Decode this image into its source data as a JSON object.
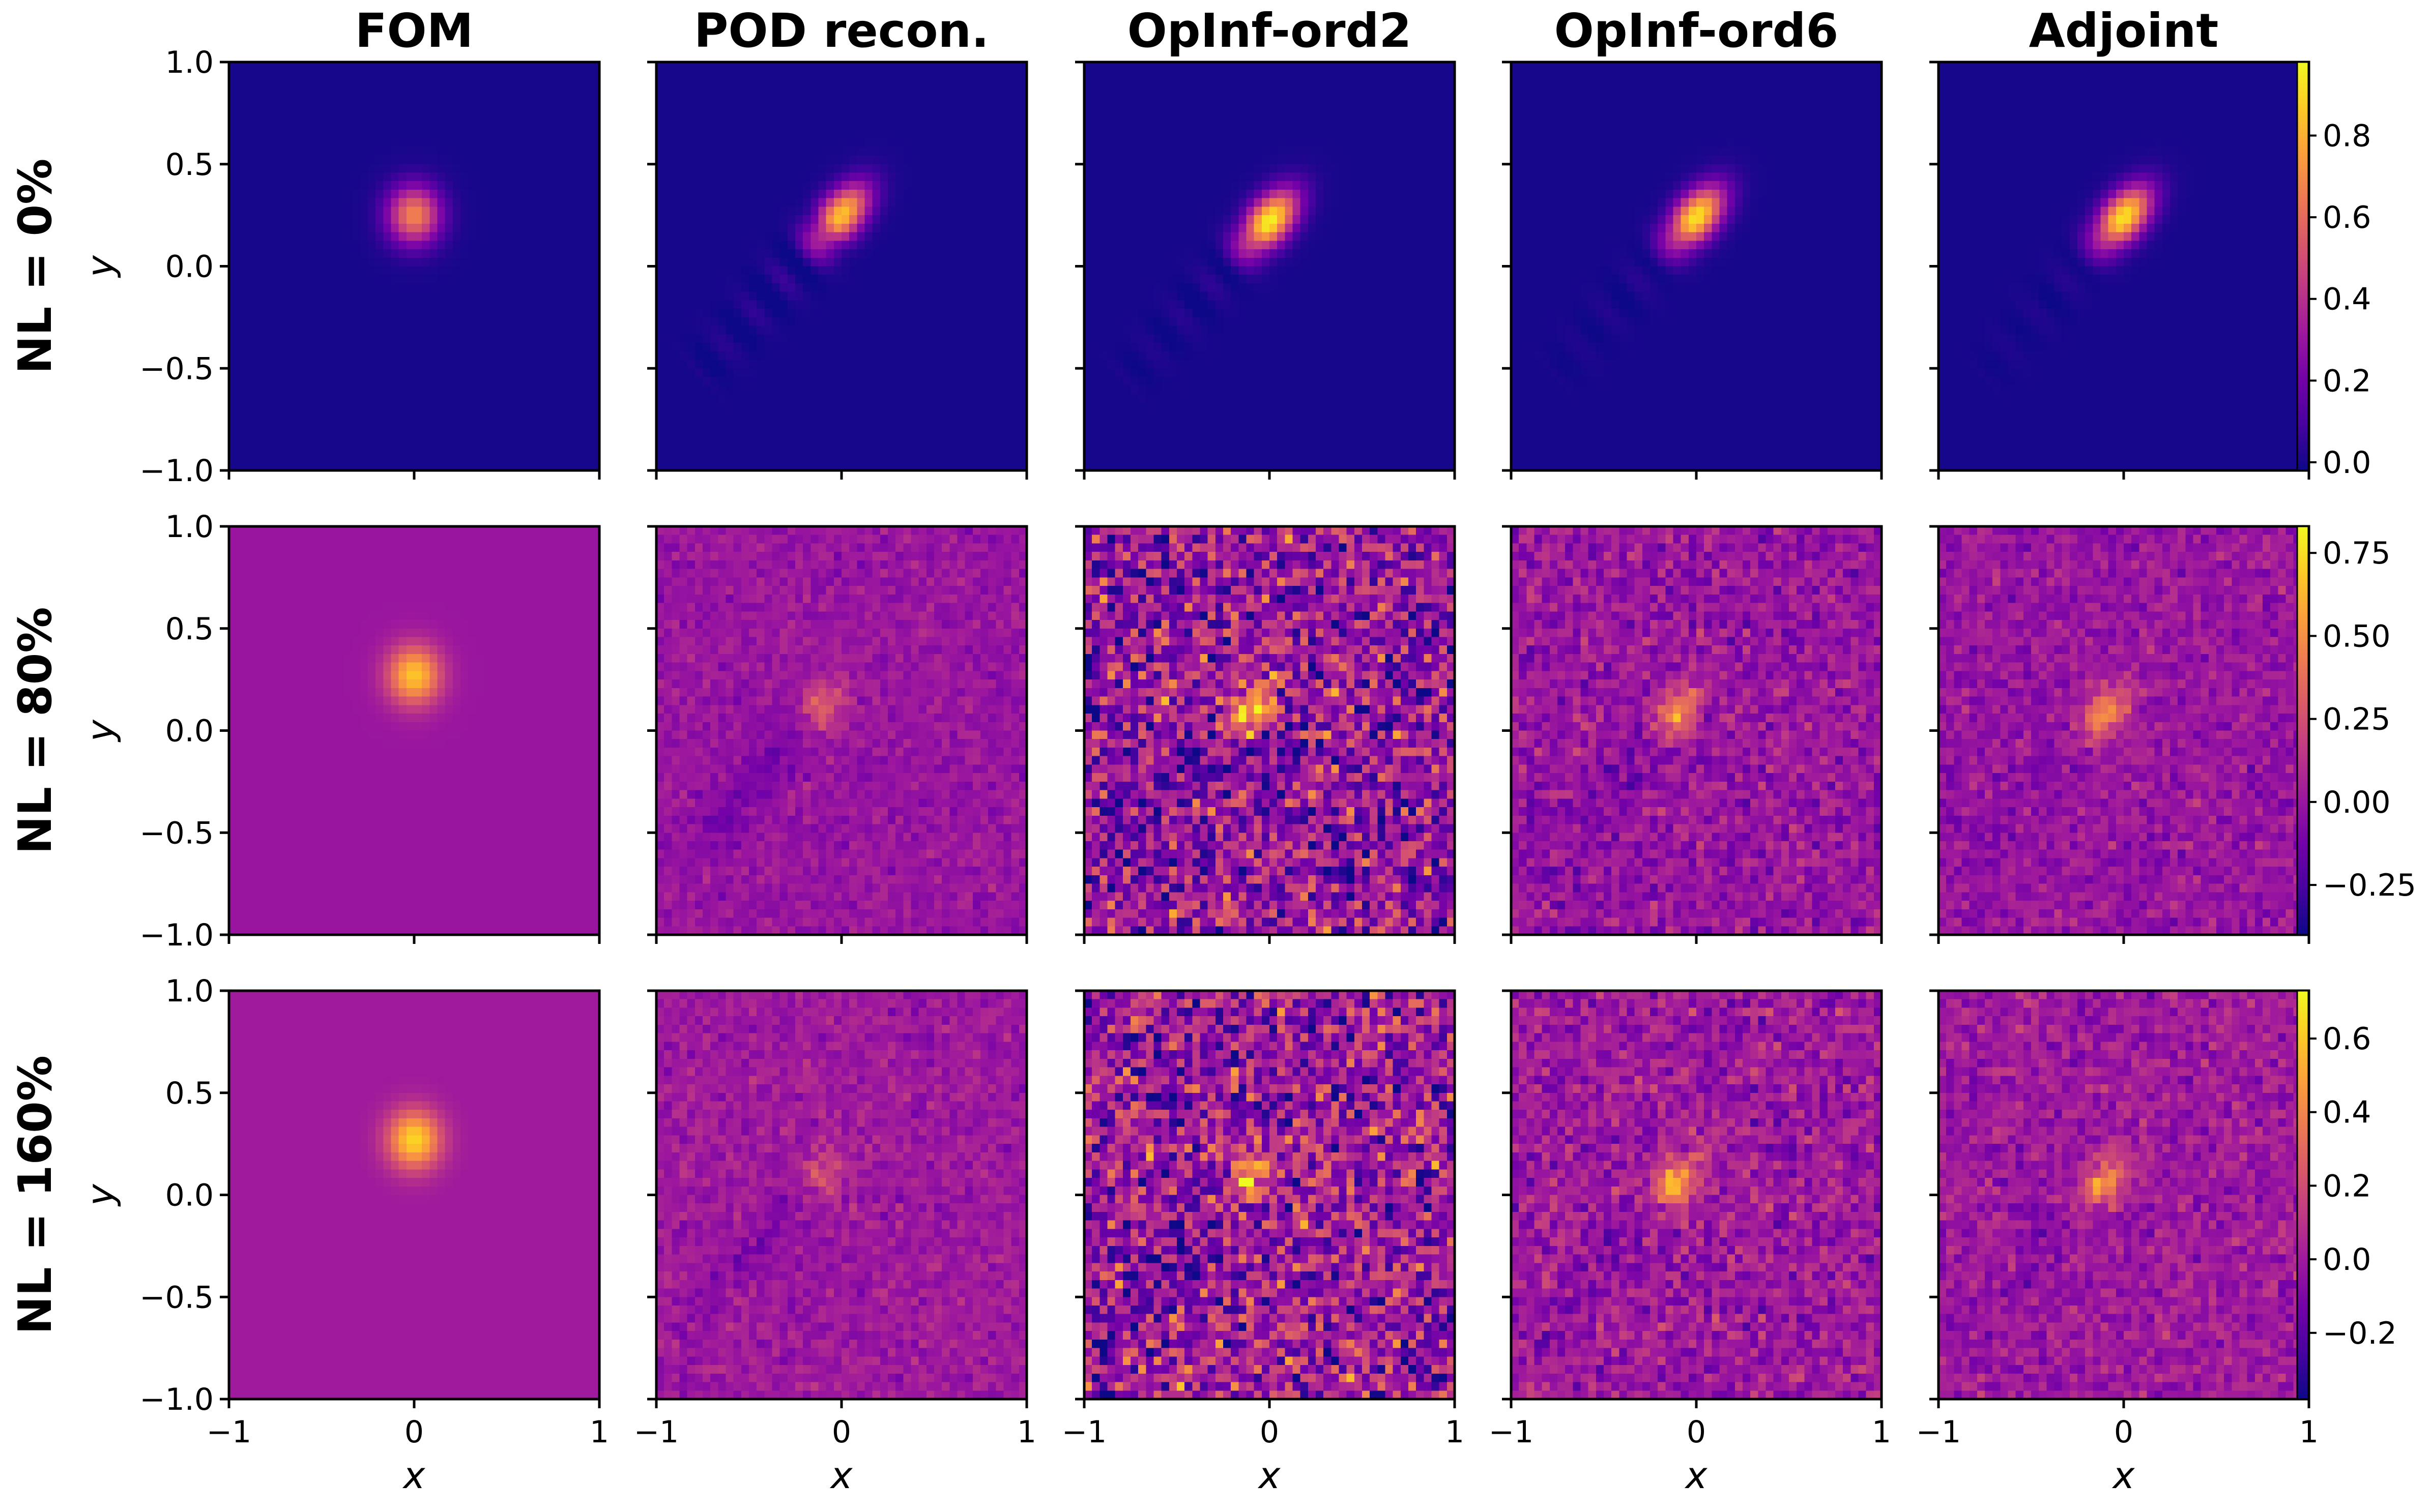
{
  "chart_data": {
    "type": "heatmap",
    "colormap": "plasma",
    "colormap_stops": [
      "#0d0887",
      "#46039f",
      "#7201a8",
      "#9c179e",
      "#bd3786",
      "#d8576b",
      "#ed7953",
      "#fb9f3a",
      "#fdca26",
      "#f0f921"
    ],
    "column_titles": [
      "FOM",
      "POD recon.",
      "OpInf-ord2",
      "OpInf-ord6",
      "Adjoint"
    ],
    "rows": [
      {
        "title": "NL = 0%",
        "clim": [
          -0.02,
          0.98
        ],
        "colorbar_ticks": [
          "0.0",
          "0.2",
          "0.4",
          "0.6",
          "0.8"
        ],
        "colorbar_tick_values": [
          0.0,
          0.2,
          0.4,
          0.6,
          0.8
        ],
        "panels": [
          {
            "peak": 0.68,
            "center": [
              0.0,
              0.25
            ],
            "background": 0.0,
            "noise": 0.0,
            "ripple": 0.0,
            "elongated": false
          },
          {
            "peak": 0.85,
            "center": [
              0.0,
              0.25
            ],
            "background": 0.0,
            "noise": 0.0,
            "ripple": 0.12,
            "elongated": true
          },
          {
            "peak": 0.97,
            "center": [
              0.0,
              0.22
            ],
            "background": 0.0,
            "noise": 0.0,
            "ripple": 0.08,
            "elongated": true
          },
          {
            "peak": 0.93,
            "center": [
              0.0,
              0.24
            ],
            "background": 0.0,
            "noise": 0.0,
            "ripple": 0.06,
            "elongated": true
          },
          {
            "peak": 0.93,
            "center": [
              0.0,
              0.24
            ],
            "background": 0.0,
            "noise": 0.0,
            "ripple": 0.05,
            "elongated": true
          }
        ]
      },
      {
        "title": "NL = 80%",
        "clim": [
          -0.4,
          0.83
        ],
        "colorbar_ticks": [
          "−0.25",
          "0.00",
          "0.25",
          "0.50",
          "0.75"
        ],
        "colorbar_tick_values": [
          -0.25,
          0.0,
          0.25,
          0.5,
          0.75
        ],
        "panels": [
          {
            "peak": 0.68,
            "center": [
              0.0,
              0.27
            ],
            "background": 0.0,
            "noise": 0.0,
            "ripple": 0.0,
            "elongated": false
          },
          {
            "peak": 0.32,
            "center": [
              -0.12,
              0.1
            ],
            "background": 0.0,
            "noise": 0.05,
            "ripple": -0.2,
            "elongated": true
          },
          {
            "peak": 0.62,
            "center": [
              -0.12,
              0.08
            ],
            "background": 0.0,
            "noise": 0.22,
            "ripple": -0.25,
            "elongated": true
          },
          {
            "peak": 0.52,
            "center": [
              -0.12,
              0.08
            ],
            "background": 0.0,
            "noise": 0.09,
            "ripple": -0.15,
            "elongated": true
          },
          {
            "peak": 0.48,
            "center": [
              -0.12,
              0.07
            ],
            "background": 0.0,
            "noise": 0.07,
            "ripple": -0.13,
            "elongated": true
          }
        ]
      },
      {
        "title": "NL = 160%",
        "clim": [
          -0.38,
          0.73
        ],
        "colorbar_ticks": [
          "−0.2",
          "0.0",
          "0.2",
          "0.4",
          "0.6"
        ],
        "colorbar_tick_values": [
          -0.2,
          0.0,
          0.2,
          0.4,
          0.6
        ],
        "panels": [
          {
            "peak": 0.64,
            "center": [
              0.0,
              0.27
            ],
            "background": 0.0,
            "noise": 0.0,
            "ripple": 0.0,
            "elongated": false
          },
          {
            "peak": 0.22,
            "center": [
              -0.12,
              0.08
            ],
            "background": 0.0,
            "noise": 0.05,
            "ripple": -0.15,
            "elongated": true
          },
          {
            "peak": 0.5,
            "center": [
              -0.12,
              0.08
            ],
            "background": 0.0,
            "noise": 0.2,
            "ripple": -0.2,
            "elongated": true
          },
          {
            "peak": 0.45,
            "center": [
              -0.12,
              0.05
            ],
            "background": 0.0,
            "noise": 0.09,
            "ripple": -0.15,
            "elongated": true
          },
          {
            "peak": 0.4,
            "center": [
              -0.12,
              0.05
            ],
            "background": 0.0,
            "noise": 0.07,
            "ripple": -0.12,
            "elongated": true
          }
        ]
      }
    ],
    "xlim": [
      -1,
      1
    ],
    "ylim": [
      -1,
      1
    ],
    "xticks": [
      "−1",
      "0",
      "1"
    ],
    "xtick_values": [
      -1,
      0,
      1
    ],
    "yticks": [
      "1.0",
      "0.5",
      "0.0",
      "−0.5",
      "−1.0"
    ],
    "ytick_values": [
      1.0,
      0.5,
      0.0,
      -0.5,
      -1.0
    ],
    "xlabel": "x",
    "ylabel": "y"
  }
}
